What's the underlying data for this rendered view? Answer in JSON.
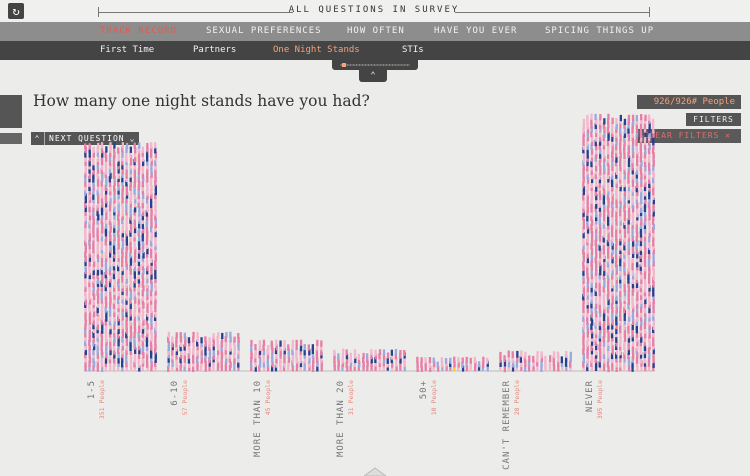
{
  "header": {
    "survey_title": "ALL QUESTIONS IN SURVEY",
    "reload_icon": "reload-icon"
  },
  "nav_primary": [
    {
      "label": "TRACK RECORD",
      "active": true
    },
    {
      "label": "SEXUAL PREFERENCES",
      "active": false
    },
    {
      "label": "HOW OFTEN",
      "active": false
    },
    {
      "label": "HAVE YOU EVER",
      "active": false
    },
    {
      "label": "SPICING THINGS UP",
      "active": false
    }
  ],
  "nav_secondary": [
    {
      "label": "First Time",
      "active": false
    },
    {
      "label": "Partners",
      "active": false
    },
    {
      "label": "One Night Stands",
      "active": true
    },
    {
      "label": "STIs",
      "active": false
    }
  ],
  "question": {
    "text": "How many one night stands have you had?",
    "next_label": "NEXT QUESTION"
  },
  "filters": {
    "count_label": "926/926# People",
    "filters_label": "FILTERS",
    "clear_label": "CLEAR FILTERS"
  },
  "colors": {
    "pink": "#e77ea5",
    "light_pink": "#f3b6cc",
    "navy": "#2a3f8f",
    "lavender": "#9ea8dd",
    "highlight": "#f3cf2e"
  },
  "chart_data": {
    "type": "bar",
    "categories": [
      {
        "label": "1-5",
        "people": "351 People",
        "value": 351
      },
      {
        "label": "6-10",
        "people": "57 People",
        "value": 57
      },
      {
        "label": "MORE THAN 10",
        "people": "45 People",
        "value": 45
      },
      {
        "label": "MORE THAN 20",
        "people": "31 People",
        "value": 31
      },
      {
        "label": "50+",
        "people": "10 People",
        "value": 10
      },
      {
        "label": "CAN'T REMEMBER",
        "people": "28 People",
        "value": 28
      },
      {
        "label": "NEVER",
        "people": "395 People",
        "value": 395
      }
    ]
  }
}
